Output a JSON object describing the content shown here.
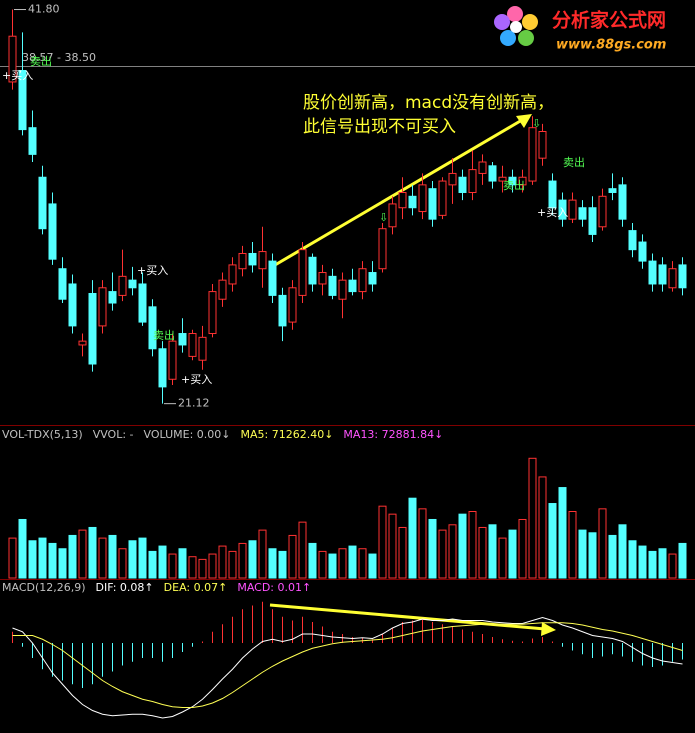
{
  "chart_data": [
    {
      "type": "candlestick",
      "open": [
        38.0,
        38.6,
        35.6,
        33.0,
        31.6,
        28.2,
        27.4,
        24.2,
        26.9,
        25.2,
        27.0,
        26.8,
        27.6,
        27.4,
        26.2,
        24.0,
        22.4,
        24.8,
        23.6,
        23.4,
        24.8,
        26.6,
        27.4,
        28.2,
        29.0,
        28.2,
        28.6,
        26.8,
        25.4,
        26.8,
        28.8,
        27.4,
        27.8,
        26.6,
        27.6,
        27.0,
        28.0,
        28.2,
        30.4,
        31.4,
        32.0,
        31.2,
        32.4,
        31.0,
        32.6,
        33.0,
        32.2,
        33.2,
        33.6,
        32.8,
        33.0,
        32.6,
        32.8,
        34.0,
        32.8,
        31.8,
        30.8,
        31.4,
        31.4,
        30.4,
        32.4,
        32.6,
        30.2,
        29.6,
        28.6,
        28.4,
        27.2,
        28.4
      ],
      "high": [
        41.8,
        40.6,
        36.5,
        33.6,
        32.2,
        28.8,
        27.9,
        24.8,
        27.6,
        27.6,
        28.0,
        29.2,
        28.3,
        28.0,
        26.6,
        24.4,
        24.8,
        25.6,
        25.0,
        25.2,
        27.4,
        28.0,
        28.8,
        29.4,
        29.6,
        30.4,
        29.0,
        27.2,
        27.6,
        29.6,
        29.0,
        28.4,
        28.2,
        28.0,
        28.2,
        28.6,
        28.6,
        30.6,
        32.0,
        33.0,
        32.6,
        33.2,
        32.8,
        33.0,
        34.0,
        33.4,
        34.4,
        34.2,
        33.8,
        33.6,
        33.4,
        33.4,
        36.2,
        35.8,
        33.2,
        32.2,
        32.2,
        31.8,
        32.0,
        32.4,
        33.2,
        33.0,
        30.6,
        30.0,
        29.0,
        28.8,
        28.6,
        28.8
      ],
      "low": [
        37.6,
        35.2,
        33.8,
        30.0,
        28.4,
        26.4,
        24.8,
        23.6,
        22.8,
        24.8,
        26.0,
        26.5,
        26.8,
        25.2,
        23.6,
        21.12,
        22.1,
        23.8,
        23.4,
        22.9,
        24.6,
        26.2,
        27.0,
        27.8,
        28.0,
        27.2,
        26.4,
        24.4,
        25.0,
        26.4,
        27.0,
        26.8,
        26.6,
        25.6,
        26.8,
        26.6,
        27.0,
        28.0,
        30.0,
        30.8,
        31.0,
        30.8,
        30.4,
        30.8,
        31.6,
        31.8,
        31.8,
        32.6,
        32.4,
        32.2,
        32.2,
        32.2,
        32.6,
        33.6,
        31.0,
        30.4,
        30.6,
        30.4,
        29.6,
        30.2,
        31.8,
        30.4,
        28.8,
        28.2,
        27.0,
        27.0,
        27.0,
        26.8
      ],
      "close": [
        40.4,
        35.5,
        34.2,
        30.3,
        28.7,
        26.6,
        25.2,
        24.4,
        23.2,
        27.2,
        26.4,
        27.8,
        27.2,
        25.4,
        24.0,
        22.0,
        24.4,
        24.2,
        24.8,
        24.6,
        27.0,
        27.6,
        28.4,
        29.0,
        28.4,
        29.1,
        26.8,
        25.2,
        27.2,
        29.2,
        27.4,
        28.0,
        26.8,
        27.6,
        27.0,
        28.2,
        27.4,
        30.3,
        31.6,
        32.2,
        31.4,
        32.6,
        30.8,
        32.8,
        33.2,
        32.2,
        33.4,
        33.8,
        32.8,
        33.0,
        32.6,
        33.0,
        35.6,
        35.4,
        31.4,
        30.8,
        31.8,
        30.8,
        30.0,
        32.0,
        32.2,
        30.8,
        29.2,
        28.6,
        27.4,
        27.4,
        28.2,
        27.2
      ],
      "up_color": "#ff3232",
      "down_color": "#54ffff",
      "ylim": [
        20.0,
        42.3
      ],
      "price_labels": [
        {
          "value": 41.8,
          "label": "41.80"
        },
        {
          "value": 21.12,
          "label": "21.12"
        }
      ],
      "cursor_label": "38.57 - 38.50",
      "signals": [
        {
          "text": "+买入",
          "color": "#ffffff"
        },
        {
          "text": "卖出",
          "color": "#54ff54"
        },
        {
          "text": "+买入",
          "color": "#ffffff"
        },
        {
          "text": "卖出",
          "color": "#54ff54"
        },
        {
          "text": "+买入",
          "color": "#ffffff"
        },
        {
          "text": "卖出",
          "color": "#54ff54"
        },
        {
          "text": "卖出",
          "color": "#54ff54"
        },
        {
          "text": "+买入",
          "color": "#ffffff"
        },
        {
          "text": "⇩",
          "color": "#54ff54"
        },
        {
          "text": "⇩",
          "color": "#54ff54"
        }
      ],
      "note": [
        "股价创新高，macd没有创新高，",
        "此信号出现不可买入"
      ]
    },
    {
      "type": "volume",
      "header": [
        {
          "text": "VOL-TDX(5,13)",
          "color": "#c0c0c0"
        },
        {
          "text": "VVOL: -",
          "color": "#c0c0c0"
        },
        {
          "text": "VOLUME: 0.00↓",
          "color": "#c0c0c0"
        },
        {
          "text": "MA5: 71262.40↓",
          "color": "#ffff54"
        },
        {
          "text": "MA13: 72881.84↓",
          "color": "#ff54ff"
        }
      ],
      "values": [
        75000,
        110000,
        70000,
        75000,
        65000,
        55000,
        80000,
        90000,
        95000,
        75000,
        80000,
        55000,
        70000,
        75000,
        50000,
        60000,
        45000,
        55000,
        40000,
        35000,
        45000,
        60000,
        50000,
        65000,
        70000,
        90000,
        55000,
        50000,
        80000,
        105000,
        65000,
        50000,
        45000,
        55000,
        60000,
        55000,
        45000,
        135000,
        120000,
        95000,
        150000,
        130000,
        110000,
        90000,
        100000,
        120000,
        125000,
        95000,
        100000,
        75000,
        90000,
        110000,
        225000,
        190000,
        140000,
        170000,
        125000,
        90000,
        85000,
        130000,
        80000,
        100000,
        70000,
        60000,
        50000,
        55000,
        45000,
        65000
      ],
      "ylim": [
        0,
        250000
      ]
    },
    {
      "type": "macd",
      "header": [
        {
          "text": "MACD(12,26,9)",
          "color": "#c0c0c0"
        },
        {
          "text": "DIF: 0.08↑",
          "color": "#ffffff"
        },
        {
          "text": "DEA: 0.07↑",
          "color": "#ffff54"
        },
        {
          "text": "MACD: 0.01↑",
          "color": "#ff54ff"
        }
      ],
      "values": [
        0.15,
        -0.05,
        -0.2,
        -0.35,
        -0.45,
        -0.5,
        -0.55,
        -0.6,
        -0.55,
        -0.45,
        -0.38,
        -0.3,
        -0.25,
        -0.2,
        -0.2,
        -0.25,
        -0.2,
        -0.12,
        -0.05,
        0.02,
        0.15,
        0.25,
        0.35,
        0.45,
        0.5,
        0.55,
        0.45,
        0.35,
        0.3,
        0.35,
        0.28,
        0.22,
        0.15,
        0.12,
        0.08,
        0.07,
        0.05,
        0.12,
        0.2,
        0.28,
        0.3,
        0.32,
        0.28,
        0.25,
        0.22,
        0.18,
        0.15,
        0.12,
        0.08,
        0.05,
        0.03,
        0.02,
        0.06,
        0.08,
        0.02,
        -0.05,
        -0.1,
        -0.15,
        -0.2,
        -0.18,
        -0.15,
        -0.18,
        -0.25,
        -0.3,
        -0.32,
        -0.3,
        -0.25,
        -0.22
      ],
      "series": [
        {
          "color": "#ffffff",
          "values": [
            0.2,
            0.15,
            0.0,
            -0.2,
            -0.4,
            -0.55,
            -0.7,
            -0.82,
            -0.9,
            -0.95,
            -0.97,
            -0.96,
            -0.95,
            -0.95,
            -0.97,
            -1.0,
            -0.98,
            -0.92,
            -0.85,
            -0.75,
            -0.62,
            -0.48,
            -0.35,
            -0.2,
            -0.08,
            0.02,
            0.05,
            0.02,
            0.05,
            0.12,
            0.12,
            0.1,
            0.08,
            0.07,
            0.06,
            0.07,
            0.06,
            0.12,
            0.2,
            0.26,
            0.28,
            0.32,
            0.3,
            0.3,
            0.32,
            0.3,
            0.3,
            0.3,
            0.28,
            0.27,
            0.26,
            0.26,
            0.3,
            0.34,
            0.3,
            0.24,
            0.2,
            0.15,
            0.1,
            0.08,
            0.06,
            0.02,
            -0.06,
            -0.14,
            -0.2,
            -0.24,
            -0.26,
            -0.28
          ]
        },
        {
          "color": "#ffff54",
          "values": [
            0.1,
            0.1,
            0.1,
            0.05,
            -0.02,
            -0.1,
            -0.2,
            -0.3,
            -0.4,
            -0.5,
            -0.58,
            -0.65,
            -0.7,
            -0.75,
            -0.78,
            -0.82,
            -0.85,
            -0.86,
            -0.86,
            -0.84,
            -0.8,
            -0.74,
            -0.66,
            -0.57,
            -0.48,
            -0.39,
            -0.31,
            -0.24,
            -0.18,
            -0.12,
            -0.07,
            -0.04,
            -0.01,
            0.01,
            0.02,
            0.03,
            0.04,
            0.05,
            0.07,
            0.1,
            0.13,
            0.16,
            0.18,
            0.2,
            0.22,
            0.23,
            0.24,
            0.25,
            0.25,
            0.25,
            0.25,
            0.25,
            0.26,
            0.27,
            0.27,
            0.27,
            0.26,
            0.24,
            0.21,
            0.18,
            0.16,
            0.13,
            0.1,
            0.06,
            0.02,
            -0.02,
            -0.06,
            -0.1
          ]
        }
      ],
      "up_color": "#ff3232",
      "down_color": "#54ffff",
      "ylim": [
        -1.2,
        0.6
      ]
    }
  ],
  "logo": {
    "title": "分析家公式网",
    "url": "www.88gs.com"
  }
}
